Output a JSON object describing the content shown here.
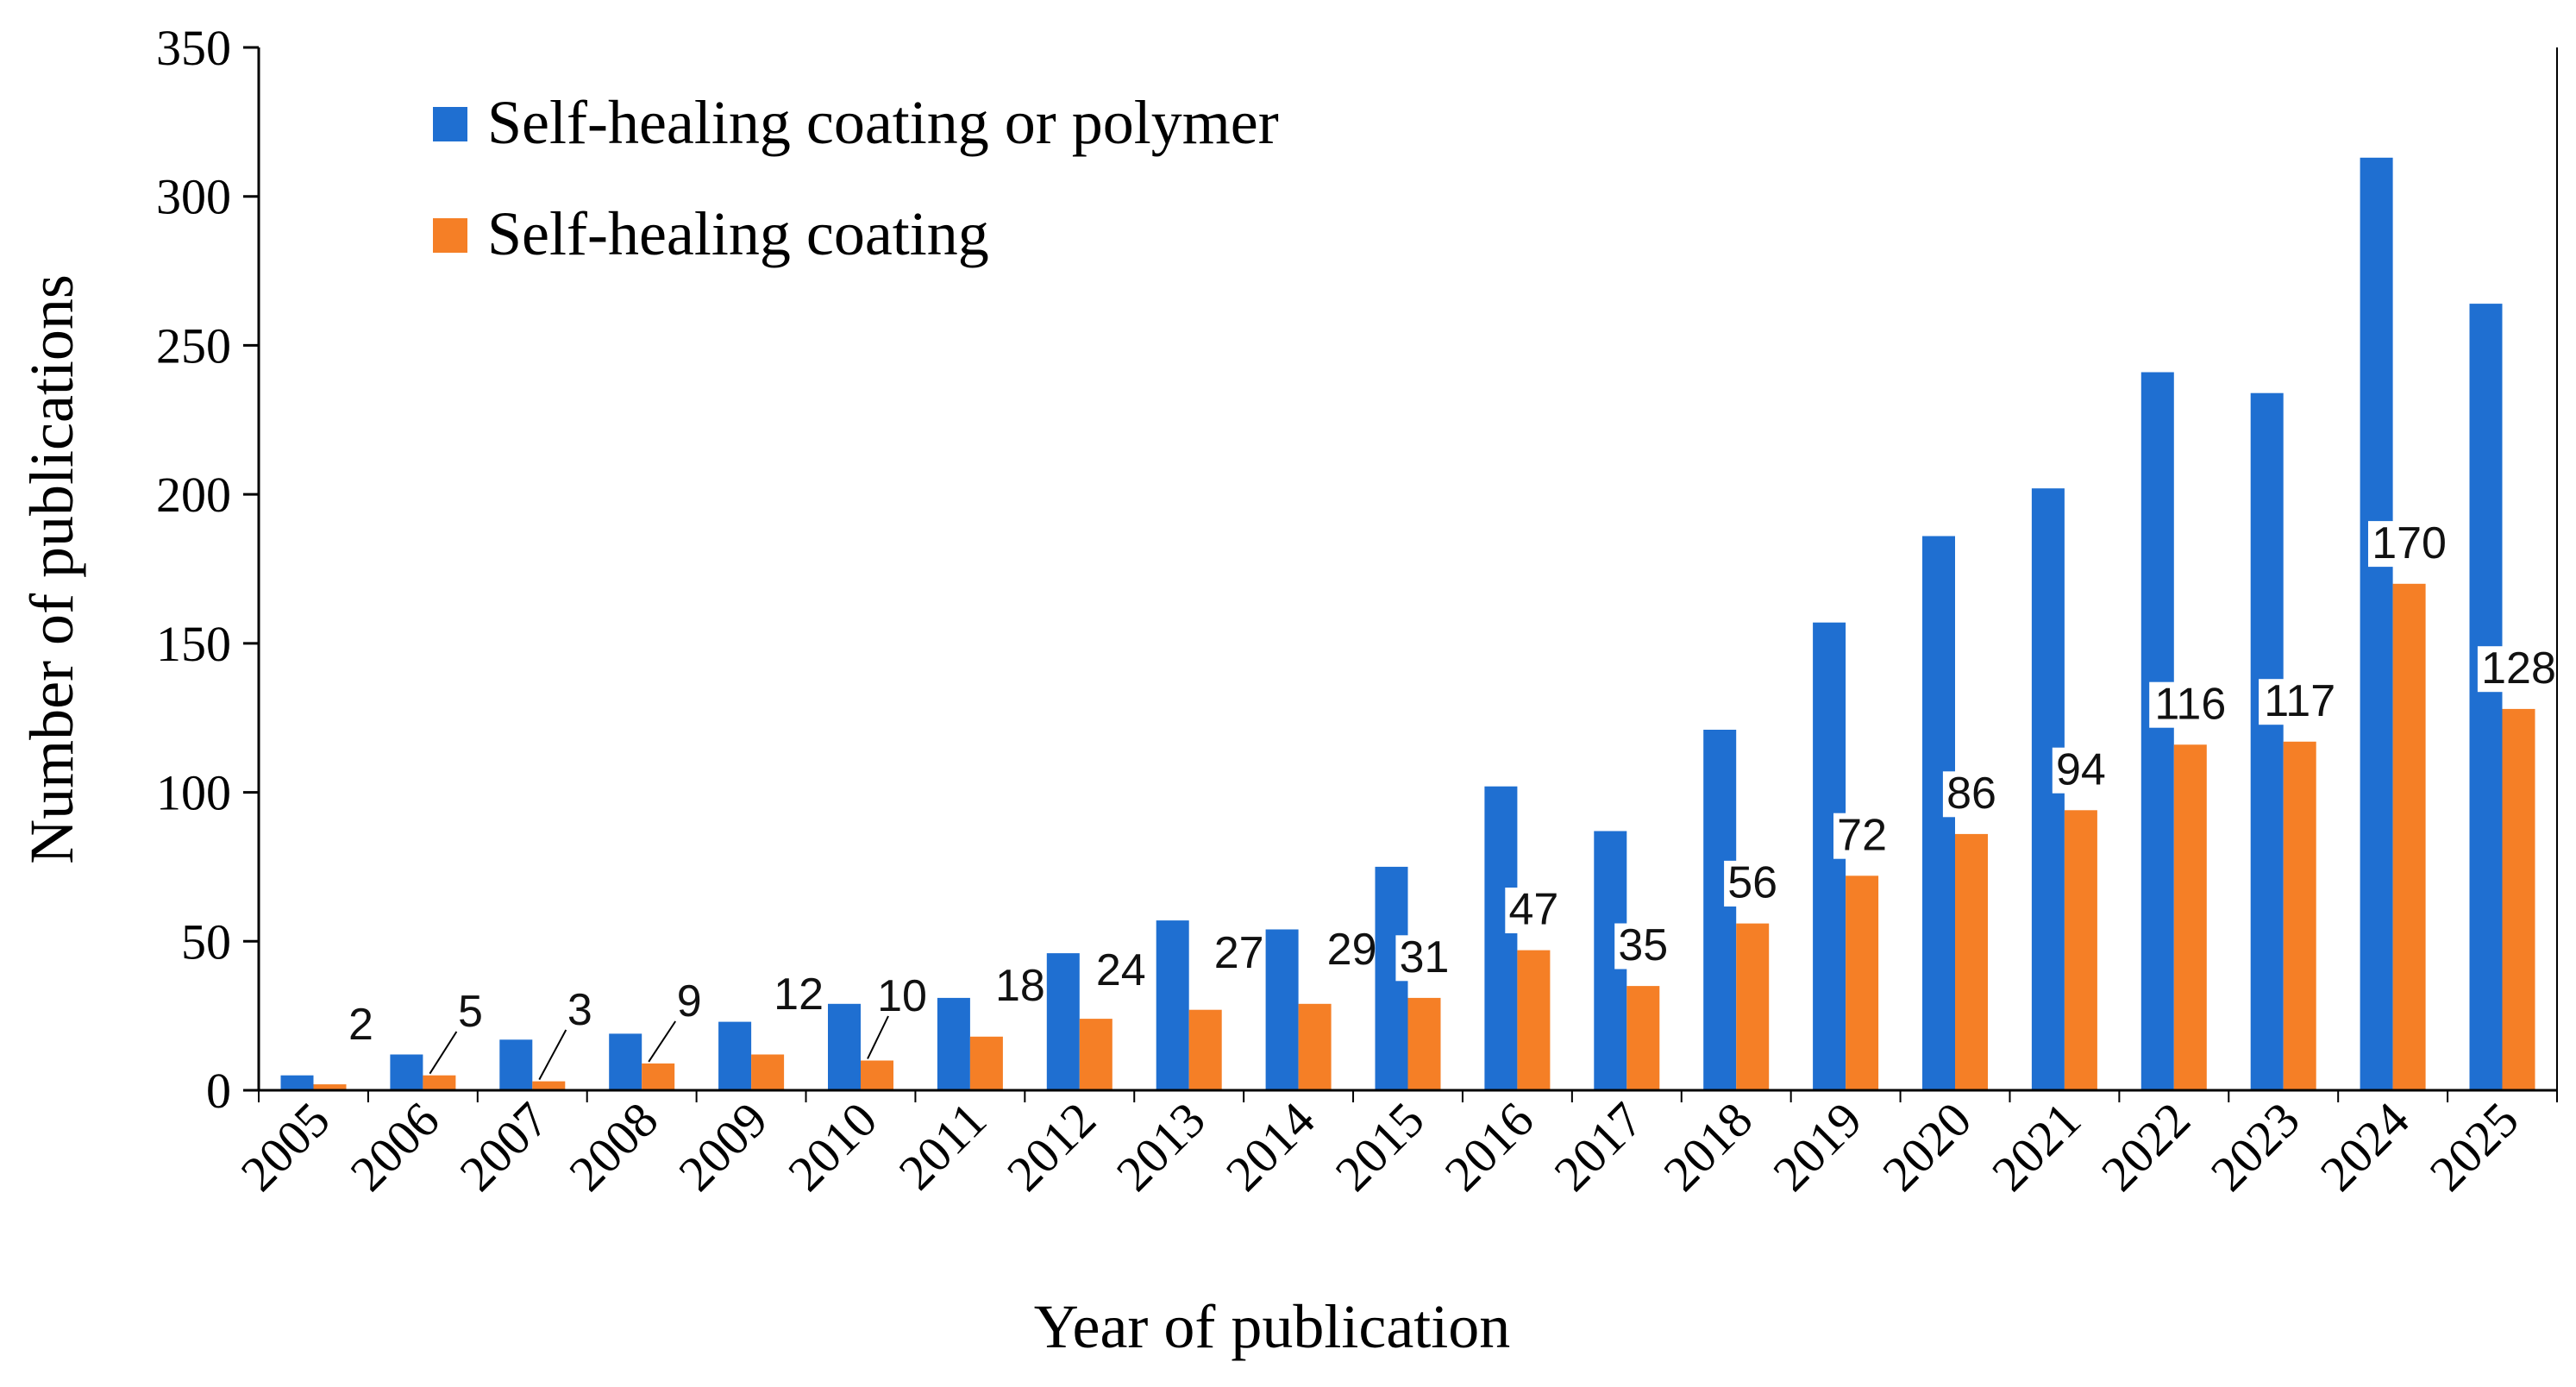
{
  "chart_data": {
    "type": "bar",
    "title": "",
    "xlabel": "Year of publication",
    "ylabel": "Number of publications",
    "ylim": [
      0,
      350
    ],
    "yticks": [
      0,
      50,
      100,
      150,
      200,
      250,
      300,
      350
    ],
    "grid": false,
    "legend_position": "top-left",
    "categories": [
      "2005",
      "2006",
      "2007",
      "2008",
      "2009",
      "2010",
      "2011",
      "2012",
      "2013",
      "2014",
      "2015",
      "2016",
      "2017",
      "2018",
      "2019",
      "2020",
      "2021",
      "2022",
      "2023",
      "2024",
      "2025"
    ],
    "series": [
      {
        "name": "Self-healing coating or polymer",
        "color": "#1f6fd1",
        "values": [
          5,
          12,
          17,
          19,
          23,
          29,
          31,
          46,
          57,
          54,
          75,
          102,
          87,
          121,
          157,
          186,
          202,
          241,
          234,
          313,
          264
        ]
      },
      {
        "name": "Self-healing coating",
        "color": "#f57f26",
        "values": [
          2,
          5,
          3,
          9,
          12,
          10,
          18,
          24,
          27,
          29,
          31,
          47,
          35,
          56,
          72,
          86,
          94,
          116,
          117,
          170,
          128
        ]
      }
    ],
    "data_labels": [
      "2",
      "5",
      "3",
      "9",
      "12",
      "10",
      "18",
      "24",
      "27",
      "29",
      "31",
      "47",
      "35",
      "56",
      "72",
      "86",
      "94",
      "116",
      "117",
      "170",
      "128"
    ]
  }
}
